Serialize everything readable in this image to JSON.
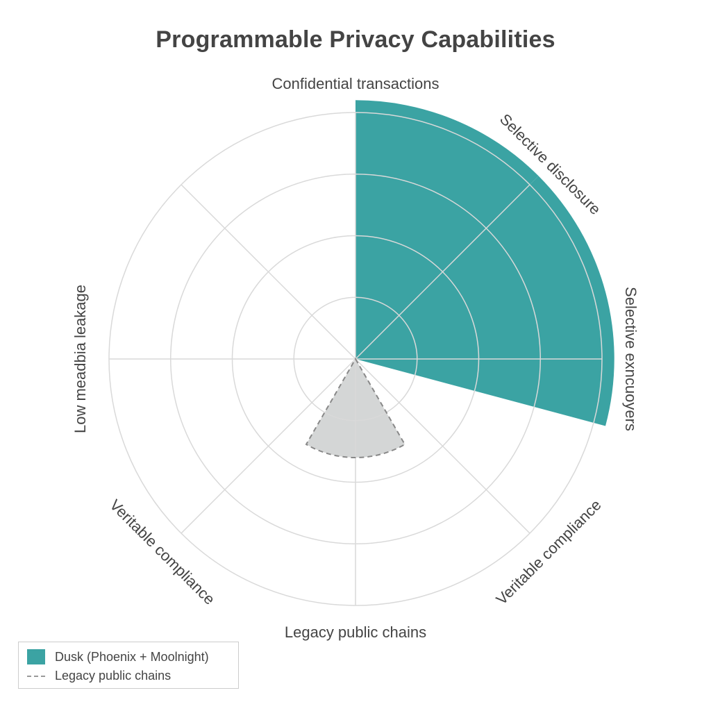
{
  "chart_data": {
    "type": "polar-area",
    "title": "Programmable Privacy Capabilities",
    "axes": [
      "Confidential transactions",
      "Selective disclosure",
      "Selective exncuoyers",
      "Veritable compliance",
      "Legacy public chains",
      "Veritable compliance",
      "Low meadbia leakage",
      ""
    ],
    "rlim": [
      0,
      4
    ],
    "rings": 4,
    "grid": true,
    "series": [
      {
        "name": "Dusk (Phoenix + Moolnight)",
        "color": "#3ba3a3",
        "sectors": [
          {
            "start_deg": 0,
            "end_deg": 45,
            "value": 4.2
          },
          {
            "start_deg": 45,
            "end_deg": 105,
            "value": 4.2
          }
        ]
      },
      {
        "name": "Legacy public chains",
        "color": "#d4d6d6",
        "line_color": "#888888",
        "dashed": true,
        "sectors": [
          {
            "start_deg": 150,
            "end_deg": 210,
            "value": 1.6
          }
        ]
      }
    ],
    "legend_position": "bottom-left"
  },
  "legend": {
    "items": [
      {
        "label": "Dusk (Phoenix + Moolnight)",
        "color": "#3ba3a3"
      },
      {
        "label": "Legacy public chains",
        "color": "#999999"
      }
    ]
  }
}
